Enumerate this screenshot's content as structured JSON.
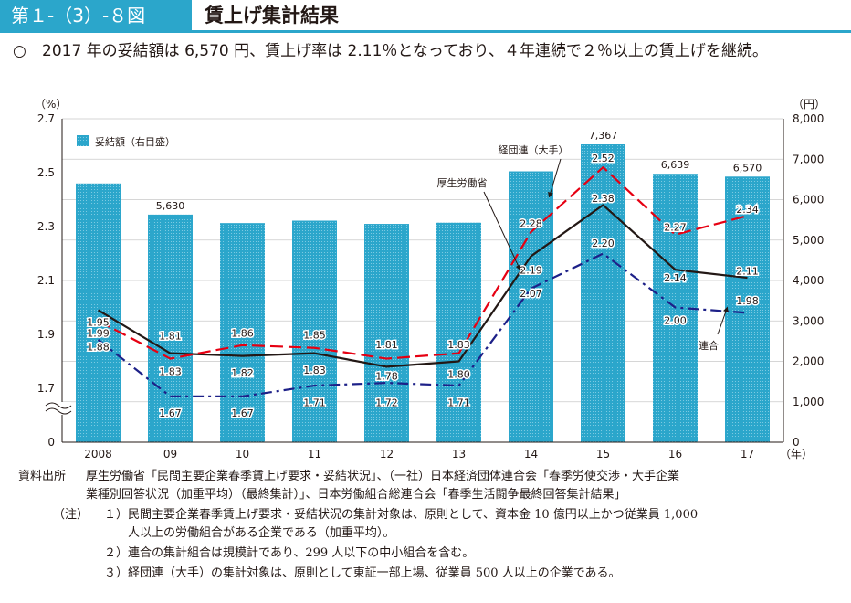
{
  "header": {
    "figure_label": "第１-（3）-８図",
    "title": "賃上げ集計結果"
  },
  "summary": {
    "bullet": "○",
    "text": "2017 年の妥結額は 6,570 円、賃上げ率は 2.11％となっており、４年連続で２％以上の賃上げを継続。"
  },
  "chart_data": {
    "type": "bar+line",
    "categories": [
      "2008",
      "09",
      "10",
      "11",
      "12",
      "13",
      "14",
      "15",
      "16",
      "17"
    ],
    "x_unit": "（年）",
    "left_axis": {
      "unit": "（%）",
      "ticks": [
        0,
        1.7,
        1.9,
        2.1,
        2.3,
        2.5,
        2.7
      ],
      "ylim": [
        1.5,
        2.7
      ],
      "broken": true
    },
    "right_axis": {
      "unit": "（円）",
      "ticks": [
        0,
        1000,
        2000,
        3000,
        4000,
        5000,
        6000,
        7000,
        8000
      ],
      "ylim": [
        0,
        8000
      ]
    },
    "bars": {
      "name": "妥結額（右目盛）",
      "axis": "right",
      "values": [
        6400,
        5630,
        5420,
        5480,
        5400,
        5430,
        6700,
        7367,
        6639,
        6570
      ],
      "labels": [
        "",
        "5,630",
        "",
        "",
        "",
        "",
        "",
        "7,367",
        "6,639",
        "6,570"
      ],
      "color": "#2ba6cb"
    },
    "series": [
      {
        "name": "厚生労働省",
        "axis": "left",
        "style": "solid",
        "color": "#231815",
        "values": [
          1.99,
          1.83,
          1.82,
          1.83,
          1.78,
          1.8,
          2.19,
          2.38,
          2.14,
          2.11
        ]
      },
      {
        "name": "経団連（大手）",
        "axis": "left",
        "style": "dashed",
        "color": "#e60012",
        "values": [
          1.95,
          1.81,
          1.86,
          1.85,
          1.81,
          1.83,
          2.28,
          2.52,
          2.27,
          2.34
        ]
      },
      {
        "name": "連合",
        "axis": "left",
        "style": "dashdot",
        "color": "#1d2088",
        "values": [
          1.88,
          1.67,
          1.67,
          1.71,
          1.72,
          1.71,
          2.07,
          2.2,
          2.0,
          1.98
        ]
      }
    ],
    "point_labels": [
      {
        "text": "1.95",
        "cat": 0,
        "y": 1.945
      },
      {
        "text": "1.99",
        "cat": 0,
        "y": 1.905
      },
      {
        "text": "1.88",
        "cat": 0,
        "y": 1.855
      },
      {
        "text": "1.81",
        "cat": 1,
        "y": 1.895
      },
      {
        "text": "1.83",
        "cat": 1,
        "y": 1.763
      },
      {
        "text": "1.67",
        "cat": 1,
        "y": 1.608
      },
      {
        "text": "1.86",
        "cat": 2,
        "y": 1.905
      },
      {
        "text": "1.82",
        "cat": 2,
        "y": 1.758
      },
      {
        "text": "1.67",
        "cat": 2,
        "y": 1.608
      },
      {
        "text": "1.85",
        "cat": 3,
        "y": 1.898
      },
      {
        "text": "1.83",
        "cat": 3,
        "y": 1.767
      },
      {
        "text": "1.71",
        "cat": 3,
        "y": 1.648
      },
      {
        "text": "1.81",
        "cat": 4,
        "y": 1.862
      },
      {
        "text": "1.78",
        "cat": 4,
        "y": 1.745
      },
      {
        "text": "1.72",
        "cat": 4,
        "y": 1.648
      },
      {
        "text": "1.83",
        "cat": 5,
        "y": 1.862
      },
      {
        "text": "1.80",
        "cat": 5,
        "y": 1.752
      },
      {
        "text": "1.71",
        "cat": 5,
        "y": 1.648
      },
      {
        "text": "2.28",
        "cat": 6,
        "y": 2.312
      },
      {
        "text": "2.19",
        "cat": 6,
        "y": 2.139
      },
      {
        "text": "2.07",
        "cat": 6,
        "y": 2.052
      },
      {
        "text": "2.52",
        "cat": 7,
        "y": 2.555
      },
      {
        "text": "2.38",
        "cat": 7,
        "y": 2.405
      },
      {
        "text": "2.20",
        "cat": 7,
        "y": 2.239
      },
      {
        "text": "2.27",
        "cat": 8,
        "y": 2.298
      },
      {
        "text": "2.14",
        "cat": 8,
        "y": 2.11
      },
      {
        "text": "2.00",
        "cat": 8,
        "y": 1.952
      },
      {
        "text": "2.34",
        "cat": 9,
        "y": 2.365
      },
      {
        "text": "2.11",
        "cat": 9,
        "y": 2.135
      },
      {
        "text": "1.98",
        "cat": 9,
        "y": 2.025
      }
    ],
    "annotations": [
      {
        "text": "経団連（大手）",
        "series": "経団連（大手）"
      },
      {
        "text": "厚生労働省",
        "series": "厚生労働省"
      },
      {
        "text": "連合",
        "series": "連合"
      }
    ]
  },
  "notes": {
    "source_label": "資料出所",
    "source_text_1": "厚生労働省「民間主要企業春季賃上げ要求・妥結状況」、（一社）日本経済団体連合会「春季労使交渉・大手企業",
    "source_text_2": "業種別回答状況（加重平均）（最終集計）」、日本労働組合総連合会「春季生活闘争最終回答集計結果」",
    "note_label": "（注）",
    "note_1a": "１）民間主要企業春季賃上げ要求・妥結状況の集計対象は、原則として、資本金 10 億円以上かつ従業員 1,000",
    "note_1b": "人以上の労働組合がある企業である（加重平均）。",
    "note_2": "２）連合の集計組合は規模計であり、299 人以下の中小組合を含む。",
    "note_3": "３）経団連（大手）の集計対象は、原則として東証一部上場、従業員 500 人以上の企業である。"
  }
}
